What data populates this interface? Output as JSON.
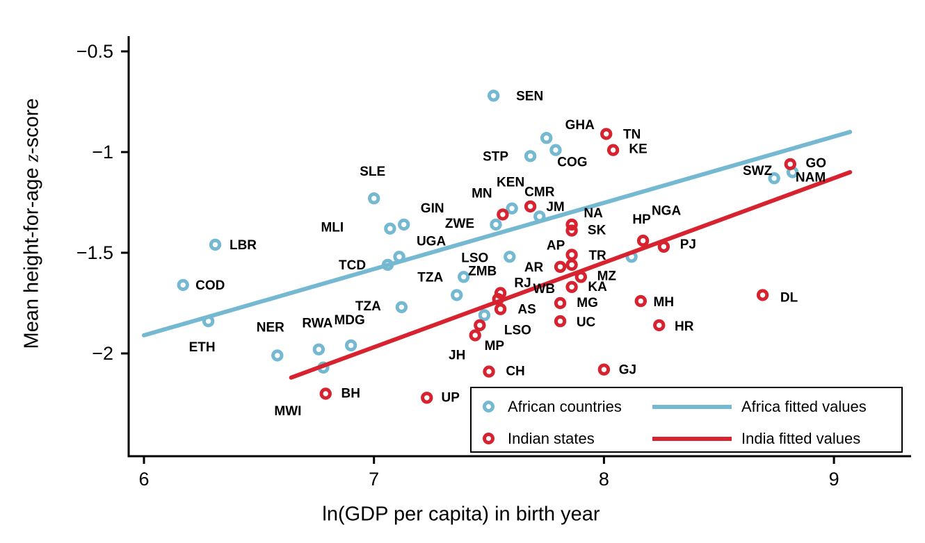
{
  "chart_data": {
    "type": "scatter",
    "xlabel": "ln(GDP per capita) in birth year",
    "ylabel": {
      "prefix": "Mean height-for-age ",
      "math": "z",
      "suffix": "-score"
    },
    "xlim": [
      5.93,
      9.34
    ],
    "ylim": [
      -2.51,
      -0.42
    ],
    "x_ticks": [
      6,
      7,
      8,
      9
    ],
    "x_tick_labels": [
      "6",
      "7",
      "8",
      "9"
    ],
    "y_ticks": [
      -0.5,
      -1,
      -1.5,
      -2
    ],
    "y_tick_labels": [
      "−0.5",
      "−1",
      "−1.5",
      "−2"
    ],
    "grid": false,
    "colors": {
      "africa": "#74b9d1",
      "india": "#d7232f",
      "axis": "#000000"
    },
    "legend": {
      "position": "inside-bottom-right",
      "items": [
        {
          "label": "African countries",
          "marker": "circle",
          "color": "#74b9d1"
        },
        {
          "label": "Indian states",
          "marker": "circle",
          "color": "#d7232f"
        },
        {
          "label": "Africa fitted values",
          "marker": "line",
          "color": "#74b9d1"
        },
        {
          "label": "India fitted values",
          "marker": "line",
          "color": "#d7232f"
        }
      ]
    },
    "series": [
      {
        "name": "African countries",
        "color": "#74b9d1",
        "points": [
          {
            "label": "SEN",
            "x": 7.52,
            "y": -0.72,
            "dx": 52,
            "dy": 1
          },
          {
            "label": "GHA",
            "x": 7.75,
            "y": -0.93,
            "dx": 48,
            "dy": -18
          },
          {
            "label": "COG",
            "x": 7.79,
            "y": -0.99,
            "dx": 24,
            "dy": 18
          },
          {
            "label": "STP",
            "x": 7.68,
            "y": -1.02,
            "dx": -50,
            "dy": 1
          },
          {
            "label": "SLE",
            "x": 7.0,
            "y": -1.23,
            "dx": -2,
            "dy": -38
          },
          {
            "label": "KEN",
            "x": 7.6,
            "y": -1.28,
            "dx": -2,
            "dy": -37
          },
          {
            "label": "CMR",
            "x": 7.72,
            "y": -1.32,
            "dx": 0,
            "dy": -35
          },
          {
            "label": "ZWE",
            "x": 7.53,
            "y": -1.36,
            "dx": -52,
            "dy": -1
          },
          {
            "label": "GIN",
            "x": 7.13,
            "y": -1.36,
            "dx": 41,
            "dy": -23
          },
          {
            "label": "MLI",
            "x": 7.07,
            "y": -1.38,
            "dx": -83,
            "dy": -1
          },
          {
            "label": "LSO",
            "x": 7.59,
            "y": -1.52,
            "dx": -50,
            "dy": 2
          },
          {
            "label": "ZMB",
            "x": 7.39,
            "y": -1.62,
            "dx": 27,
            "dy": -8
          },
          {
            "label": "TCD",
            "x": 7.06,
            "y": -1.56,
            "dx": -51,
            "dy": 1
          },
          {
            "label": "UGA",
            "x": 7.11,
            "y": -1.52,
            "dx": 46,
            "dy": -22
          },
          {
            "label": "TZA",
            "x": 7.36,
            "y": -1.71,
            "dx": -38,
            "dy": -25
          },
          {
            "label": "TZA",
            "x": 7.12,
            "y": -1.77,
            "dx": -48,
            "dy": -1
          },
          {
            "label": "LSO",
            "x": 7.48,
            "y": -1.81,
            "dx": 48,
            "dy": 22
          },
          {
            "label": "NGA",
            "x": 8.12,
            "y": -1.52,
            "dx": 50,
            "dy": -66
          },
          {
            "label": "SWZ",
            "x": 8.74,
            "y": -1.13,
            "dx": -24,
            "dy": -10
          },
          {
            "label": "NAM",
            "x": 8.82,
            "y": -1.1,
            "dx": 26,
            "dy": 8
          },
          {
            "label": "LBR",
            "x": 6.31,
            "y": -1.46,
            "dx": 40,
            "dy": 1
          },
          {
            "label": "COD",
            "x": 6.17,
            "y": -1.66,
            "dx": 39,
            "dy": 1
          },
          {
            "label": "ETH",
            "x": 6.28,
            "y": -1.84,
            "dx": -9,
            "dy": 38
          },
          {
            "label": "NER",
            "x": 6.58,
            "y": -2.01,
            "dx": -10,
            "dy": -40
          },
          {
            "label": "RWA",
            "x": 6.76,
            "y": -1.98,
            "dx": -2,
            "dy": -37
          },
          {
            "label": "MDG",
            "x": 6.9,
            "y": -1.96,
            "dx": -2,
            "dy": -36
          },
          {
            "label": "MWI",
            "x": 6.78,
            "y": -2.07,
            "dx": -51,
            "dy": 63
          }
        ]
      },
      {
        "name": "Indian states",
        "color": "#d7232f",
        "points": [
          {
            "label": "TN",
            "x": 8.01,
            "y": -0.91,
            "dx": 37,
            "dy": 1
          },
          {
            "label": "KE",
            "x": 8.04,
            "y": -0.99,
            "dx": 36,
            "dy": -1
          },
          {
            "label": "MN",
            "x": 7.56,
            "y": -1.31,
            "dx": -30,
            "dy": -30
          },
          {
            "label": "JM",
            "x": 7.68,
            "y": -1.27,
            "dx": 36,
            "dy": 1
          },
          {
            "label": "NA",
            "x": 7.86,
            "y": -1.36,
            "dx": 31,
            "dy": -16
          },
          {
            "label": "SK",
            "x": 7.86,
            "y": -1.39,
            "dx": 36,
            "dy": 0
          },
          {
            "label": "AP",
            "x": 7.86,
            "y": -1.51,
            "dx": -23,
            "dy": -13
          },
          {
            "label": "TR",
            "x": 7.86,
            "y": -1.56,
            "dx": 37,
            "dy": -13
          },
          {
            "label": "AR",
            "x": 7.81,
            "y": -1.57,
            "dx": -38,
            "dy": 1
          },
          {
            "label": "MZ",
            "x": 7.9,
            "y": -1.62,
            "dx": 37,
            "dy": -1
          },
          {
            "label": "KA",
            "x": 7.86,
            "y": -1.67,
            "dx": 37,
            "dy": 0
          },
          {
            "label": "RJ",
            "x": 7.55,
            "y": -1.7,
            "dx": 32,
            "dy": -14
          },
          {
            "label": "WB",
            "x": 7.54,
            "y": -1.73,
            "dx": 66,
            "dy": -14
          },
          {
            "label": "AS",
            "x": 7.55,
            "y": -1.78,
            "dx": 38,
            "dy": 1
          },
          {
            "label": "MG",
            "x": 7.81,
            "y": -1.75,
            "dx": 39,
            "dy": 0
          },
          {
            "label": "UC",
            "x": 7.81,
            "y": -1.84,
            "dx": 37,
            "dy": 2
          },
          {
            "label": "MH",
            "x": 8.16,
            "y": -1.74,
            "dx": 33,
            "dy": 2
          },
          {
            "label": "HR",
            "x": 8.24,
            "y": -1.86,
            "dx": 36,
            "dy": 2
          },
          {
            "label": "HP",
            "x": 8.17,
            "y": -1.44,
            "dx": -2,
            "dy": -30
          },
          {
            "label": "PJ",
            "x": 8.26,
            "y": -1.47,
            "dx": 35,
            "dy": -3
          },
          {
            "label": "GO",
            "x": 8.81,
            "y": -1.06,
            "dx": 37,
            "dy": -1
          },
          {
            "label": "DL",
            "x": 8.69,
            "y": -1.71,
            "dx": 38,
            "dy": 4
          },
          {
            "label": "MP",
            "x": 7.46,
            "y": -1.86,
            "dx": 21,
            "dy": 30
          },
          {
            "label": "JH",
            "x": 7.44,
            "y": -1.91,
            "dx": -26,
            "dy": 29
          },
          {
            "label": "CH",
            "x": 7.5,
            "y": -2.09,
            "dx": 38,
            "dy": 0
          },
          {
            "label": "GJ",
            "x": 8.0,
            "y": -2.08,
            "dx": 34,
            "dy": 1
          },
          {
            "label": "BH",
            "x": 6.79,
            "y": -2.2,
            "dx": 36,
            "dy": 0
          },
          {
            "label": "UP",
            "x": 7.23,
            "y": -2.22,
            "dx": 34,
            "dy": 0
          }
        ]
      }
    ],
    "fit_lines": [
      {
        "name": "Africa fitted values",
        "color": "#74b9d1",
        "x1": 6.0,
        "y1": -1.91,
        "x2": 9.07,
        "y2": -0.9
      },
      {
        "name": "India fitted values",
        "color": "#d7232f",
        "x1": 6.64,
        "y1": -2.12,
        "x2": 9.07,
        "y2": -1.1
      }
    ]
  }
}
